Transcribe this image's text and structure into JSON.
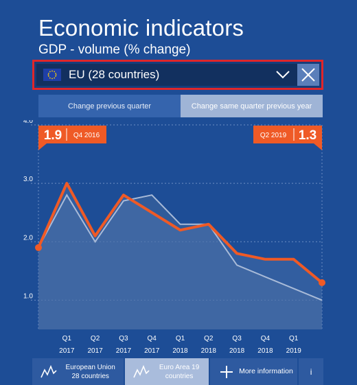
{
  "header": {
    "title": "Economic indicators",
    "subtitle": "GDP - volume (% change)"
  },
  "selector": {
    "selected": "EU (28 countries)",
    "icons": {
      "flag": "eu-flag-icon",
      "dropdown": "chevron-down-icon",
      "close": "close-icon"
    }
  },
  "tabs": [
    {
      "label": "Change previous quarter",
      "active": false
    },
    {
      "label": "Change same quarter previous year",
      "active": true
    }
  ],
  "callouts": {
    "start": {
      "value": "1.9",
      "period": "Q4 2016"
    },
    "end": {
      "value": "1.3",
      "period": "Q2 2019"
    }
  },
  "bottom_bar": {
    "items": [
      {
        "label": "European Union\n28 countries",
        "icon": "line-chart-icon"
      },
      {
        "label": "Euro Area 19\ncountries",
        "icon": "line-chart-icon"
      },
      {
        "label": "More information",
        "icon": "plus-icon"
      },
      {
        "label": "i",
        "icon": "info-icon"
      }
    ]
  },
  "colors": {
    "background": "#1d4d96",
    "accent": "#ef5a26",
    "secondary_line": "#a9bbd8"
  },
  "chart_data": {
    "type": "line",
    "ylim": [
      0.5,
      4.0
    ],
    "yticks": [
      "4.0",
      "3.0",
      "2.0",
      "1.0"
    ],
    "ytick_values": [
      4.0,
      3.0,
      2.0,
      1.0
    ],
    "x_labels": [
      {
        "q": "Q1",
        "y": "2017"
      },
      {
        "q": "Q2",
        "y": "2017"
      },
      {
        "q": "Q3",
        "y": "2017"
      },
      {
        "q": "Q4",
        "y": "2017"
      },
      {
        "q": "Q1",
        "y": "2018"
      },
      {
        "q": "Q2",
        "y": "2018"
      },
      {
        "q": "Q3",
        "y": "2018"
      },
      {
        "q": "Q4",
        "y": "2018"
      },
      {
        "q": "Q1",
        "y": "2019"
      }
    ],
    "periods": [
      "Q4 2016",
      "Q1 2017",
      "Q2 2017",
      "Q3 2017",
      "Q4 2017",
      "Q1 2018",
      "Q2 2018",
      "Q3 2018",
      "Q4 2018",
      "Q1 2019",
      "Q2 2019"
    ],
    "series": [
      {
        "values": [
          1.9,
          3.0,
          2.1,
          2.8,
          2.5,
          2.2,
          2.3,
          1.8,
          1.7,
          1.7,
          1.3
        ]
      },
      {
        "values": [
          1.9,
          2.8,
          2.0,
          2.7,
          2.8,
          2.3,
          2.3,
          1.6,
          1.4,
          1.2,
          1.0
        ]
      }
    ]
  }
}
